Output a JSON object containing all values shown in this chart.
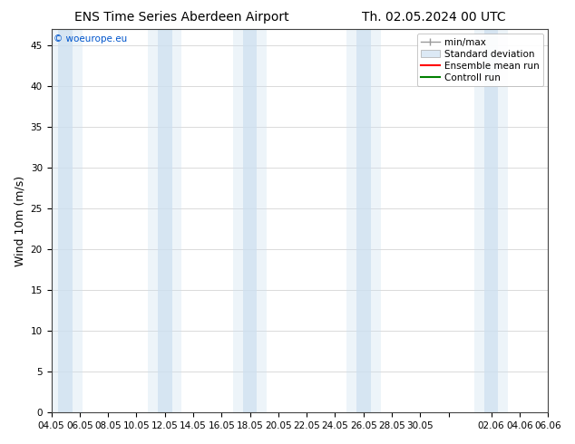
{
  "title_left": "ENS Time Series Aberdeen Airport",
  "title_right": "Th. 02.05.2024 00 UTC",
  "ylabel": "Wind 10m (m/s)",
  "watermark": "© woeurope.eu",
  "ylim": [
    0,
    47
  ],
  "yticks": [
    0,
    5,
    10,
    15,
    20,
    25,
    30,
    35,
    40,
    45
  ],
  "xtick_labels": [
    "04.05",
    "06.05",
    "08.05",
    "10.05",
    "12.05",
    "14.05",
    "16.05",
    "18.05",
    "20.05",
    "22.05",
    "24.05",
    "26.05",
    "28.05",
    "30.05",
    "",
    "02.06",
    "04.06",
    "06.06"
  ],
  "background_color": "#ffffff",
  "plot_bg_color": "#ffffff",
  "shaded_color": "#cde0f0",
  "legend_labels": [
    "min/max",
    "Standard deviation",
    "Ensemble mean run",
    "Controll run"
  ],
  "legend_line_colors": [
    "#999999",
    "#bbbbbb",
    "#ff0000",
    "#008000"
  ],
  "title_fontsize": 10,
  "label_fontsize": 9,
  "tick_fontsize": 7.5
}
